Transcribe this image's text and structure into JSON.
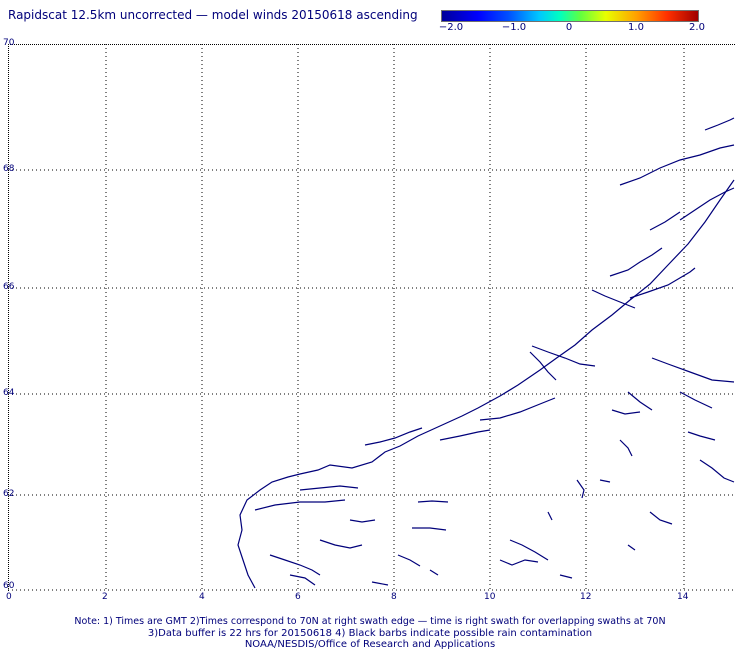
{
  "title": "Rapidscat 12.5km uncorrected — model winds 20150618 ascending",
  "colorbar": {
    "labels": [
      "−2.0",
      "−1.0",
      "0",
      "1.0",
      "2.0"
    ]
  },
  "axes": {
    "lat_labels": [
      "70",
      "68",
      "66",
      "64",
      "62",
      "60"
    ],
    "lon_labels": [
      "0",
      "2",
      "4",
      "6",
      "8",
      "10",
      "12",
      "14"
    ]
  },
  "notes": {
    "line1": "Note: 1) Times are GMT 2)Times correspond to 70N at right swath edge — time is right swath for overlapping swaths at 70N",
    "line2": "3)Data buffer is 22 hrs for 20150618 4) Black barbs indicate possible rain contamination",
    "line3": "NOAA/NESDIS/Office of Research and Applications"
  },
  "colors": {
    "coastline": "#00007a",
    "grid": "#000000"
  }
}
